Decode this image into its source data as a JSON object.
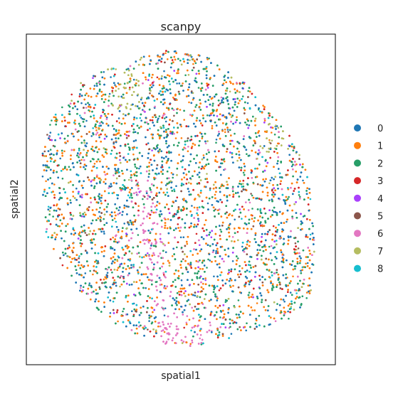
{
  "chart_data": {
    "type": "scatter",
    "title": "scanpy",
    "xlabel": "spatial1",
    "ylabel": "spatial2",
    "grid": false,
    "ticks": false,
    "legend_placement": "right",
    "categories": [
      "0",
      "1",
      "2",
      "3",
      "4",
      "5",
      "6",
      "7",
      "8"
    ],
    "colors": [
      "#1f77b4",
      "#ff7f0e",
      "#279e68",
      "#d62728",
      "#aa40fc",
      "#8c564b",
      "#e377c2",
      "#b5bd61",
      "#17becf"
    ],
    "weights": [
      0.22,
      0.26,
      0.26,
      0.07,
      0.02,
      0.04,
      0.05,
      0.03,
      0.05
    ],
    "x_range": [
      0,
      1
    ],
    "y_range": [
      0,
      1
    ]
  }
}
